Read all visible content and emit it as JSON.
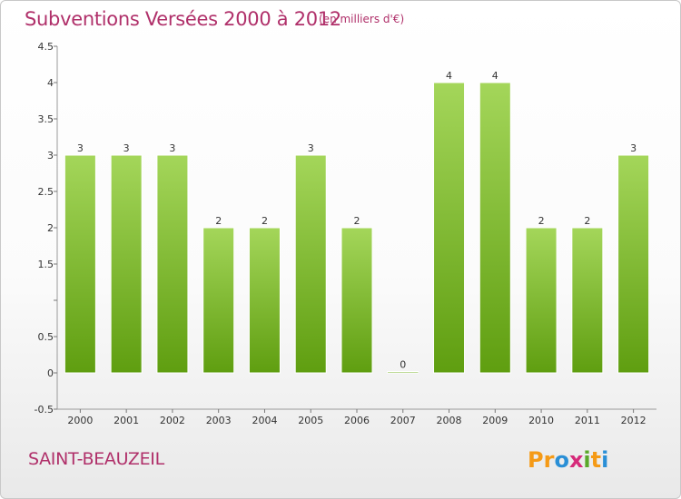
{
  "header": {
    "title": "Subventions Versées 2000 à 2012",
    "subtitle": "(en milliers d'€)"
  },
  "footer": {
    "commune": "SAINT-BEAUZEIL",
    "brand": "Proxiti"
  },
  "colors": {
    "title": "#b0306a",
    "bar_top": "#a4d65a",
    "bar_bottom": "#5f9e10",
    "brand_letters": [
      "#f59a16",
      "#f59a16",
      "#2a8fd6",
      "#d62a7a",
      "#5aa82a",
      "#f59a16",
      "#2a8fd6"
    ]
  },
  "chart_data": {
    "type": "bar",
    "title": "Subventions Versées 2000 à 2012",
    "xlabel": "",
    "ylabel": "",
    "categories": [
      "2000",
      "2001",
      "2002",
      "2003",
      "2004",
      "2005",
      "2006",
      "2007",
      "2008",
      "2009",
      "2010",
      "2011",
      "2012"
    ],
    "values": [
      3,
      3,
      3,
      2,
      2,
      3,
      2,
      0,
      4,
      4,
      2,
      2,
      3
    ],
    "data_labels": [
      "3",
      "3",
      "3",
      "2",
      "2",
      "3",
      "2",
      "0",
      "4",
      "4",
      "2",
      "2",
      "3"
    ],
    "ylim": [
      -0.5,
      4.5
    ],
    "yticks": [
      -0.5,
      0,
      0.5,
      1,
      1.5,
      2,
      2.5,
      3,
      3.5,
      4,
      4.5
    ],
    "ytick_labels": [
      "-0.5",
      "0",
      "0.5",
      "",
      "1.5",
      "2",
      "2.5",
      "3",
      "3.5",
      "4",
      "4.5"
    ],
    "grid": false,
    "legend": "none"
  }
}
